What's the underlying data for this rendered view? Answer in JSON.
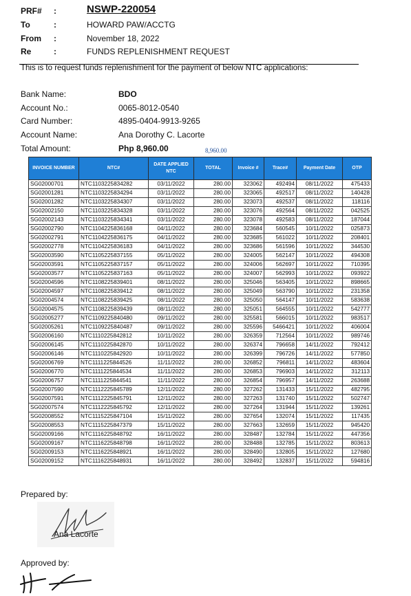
{
  "header": {
    "prf_label": "PRF#",
    "prf_value": "NSWP-220054",
    "to_label": "To",
    "to_value": "HOWARD PAW/ACCTG",
    "from_label": "From",
    "from_value": "November 18, 2022",
    "re_label": "Re",
    "re_value": "FUNDS REPLENISHMENT REQUEST",
    "colon": ":"
  },
  "intro": "This is to request funds replenishment for the payment of below NTC applications:",
  "bank": {
    "bank_name_label": "Bank Name:",
    "bank_name": "BDO",
    "account_no_label": "Account No.:",
    "account_no": "0065-8012-0540",
    "card_number_label": "Card Number:",
    "card_number": "4895-0404-9913-9265",
    "account_name_label": "Account Name:",
    "account_name": "Ana Dorothy C. Lacorte",
    "total_amount_label": "Total Amount:",
    "total_amount": "Php 8,960.00",
    "total_amount_echo": "8,960.00"
  },
  "table": {
    "headers": [
      "INVOICE NUMBER",
      "NTC#",
      "DATE APPLIED NTC",
      "TOTAL",
      "Invoice #",
      "Trace#",
      "Payment Date",
      "OTP"
    ],
    "rows": [
      [
        "SG02000701",
        "NTC1103225834282",
        "03/11/2022",
        "280.00",
        "323062",
        "492494",
        "08/11/2022",
        "475433"
      ],
      [
        "SG02001281",
        "NTC1103225834294",
        "03/11/2022",
        "280.00",
        "323065",
        "492517",
        "08/11/2022",
        "140428"
      ],
      [
        "SG02001282",
        "NTC1103225834307",
        "03/11/2022",
        "280.00",
        "323073",
        "492537",
        "08/11/2022",
        "118116"
      ],
      [
        "SG02002150",
        "NTC1103225834328",
        "03/11/2022",
        "280.00",
        "323076",
        "492564",
        "08/11/2022",
        "042525"
      ],
      [
        "SG02002143",
        "NTC1103225834341",
        "03/11/2022",
        "280.00",
        "323078",
        "492583",
        "08/11/2022",
        "187044"
      ],
      [
        "SG02002790",
        "NTC1104225836168",
        "04/11/2022",
        "280.00",
        "323684",
        "560545",
        "10/11/2022",
        "025873"
      ],
      [
        "SG02002791",
        "NTC1104225836175",
        "04/11/2022",
        "280.00",
        "323685",
        "561022",
        "10/11/2022",
        "208401"
      ],
      [
        "SG02002778",
        "NTC1104225836183",
        "04/11/2022",
        "280.00",
        "323686",
        "561596",
        "10/11/2022",
        "344530"
      ],
      [
        "SG02003590",
        "NTC1105225837155",
        "05/11/2022",
        "280.00",
        "324005",
        "562147",
        "10/11/2022",
        "494308"
      ],
      [
        "SG02003591",
        "NTC1105225837157",
        "05/11/2022",
        "280.00",
        "324006",
        "562697",
        "10/11/2022",
        "710395"
      ],
      [
        "SG02003577",
        "NTC1105225837163",
        "05/11/2022",
        "280.00",
        "324007",
        "562993",
        "10/11/2022",
        "093922"
      ],
      [
        "SG02004596",
        "NTC1108225839401",
        "08/11/2022",
        "280.00",
        "325046",
        "563405",
        "10/11/2022",
        "898665"
      ],
      [
        "SG02004597",
        "NTC1108225839412",
        "08/11/2022",
        "280.00",
        "325049",
        "563790",
        "10/11/2022",
        "231358"
      ],
      [
        "SG02004574",
        "NTC1108225839425",
        "08/11/2022",
        "280.00",
        "325050",
        "564147",
        "10/11/2022",
        "583638"
      ],
      [
        "SG02004575",
        "NTC1108225839439",
        "08/11/2022",
        "280.00",
        "325051",
        "564555",
        "10/11/2022",
        "542777"
      ],
      [
        "SG02005277",
        "NTC1109225840480",
        "09/11/2022",
        "280.00",
        "325581",
        "566015",
        "10/11/2022",
        "983517"
      ],
      [
        "SG02005261",
        "NTC1109225840487",
        "09/11/2022",
        "280.00",
        "325596",
        "5466421",
        "10/11/2022",
        "406004"
      ],
      [
        "SG02006160",
        "NTC1110225842812",
        "10/11/2022",
        "280.00",
        "326359",
        "712564",
        "10/11/2022",
        "989746"
      ],
      [
        "SG02006145",
        "NTC1110225842870",
        "10/11/2022",
        "280.00",
        "326374",
        "796658",
        "14/11/2022",
        "792412"
      ],
      [
        "SG02006146",
        "NTC1110225842920",
        "10/11/2022",
        "280.00",
        "326399",
        "796726",
        "14/11/2022",
        "577850"
      ],
      [
        "SG02006769",
        "NTC1111225844526",
        "11/11/2022",
        "280.00",
        "326852",
        "796811",
        "14/11/2022",
        "483604"
      ],
      [
        "SG02006770",
        "NTC1111225844534",
        "11/11/2022",
        "280.00",
        "326853",
        "796903",
        "14/11/2022",
        "312113"
      ],
      [
        "SG02006757",
        "NTC1111225844541",
        "11/11/2022",
        "280.00",
        "326854",
        "796957",
        "14/11/2022",
        "263688"
      ],
      [
        "SG02007590",
        "NTC1112225845789",
        "12/11/2022",
        "280.00",
        "327262",
        "131433",
        "15/11/2022",
        "482795"
      ],
      [
        "SG02007591",
        "NTC1112225845791",
        "12/11/2022",
        "280.00",
        "327263",
        "131740",
        "15/11/2022",
        "502747"
      ],
      [
        "SG02007574",
        "NTC1112225845792",
        "12/11/2022",
        "280.00",
        "327264",
        "131944",
        "15/11/2022",
        "139261"
      ],
      [
        "SG02008552",
        "NTC1115225847104",
        "15/11/2022",
        "280.00",
        "327654",
        "132074",
        "15/11/2022",
        "117435"
      ],
      [
        "SG02008553",
        "NTC1115225847379",
        "15/11/2022",
        "280.00",
        "327663",
        "132659",
        "15/11/2022",
        "945420"
      ],
      [
        "SG02009166",
        "NTC1116225848792",
        "16/11/2022",
        "280.00",
        "328487",
        "132784",
        "15/11/2022",
        "447356"
      ],
      [
        "SG02009167",
        "NTC1116225848798",
        "16/11/2022",
        "280.00",
        "328488",
        "132785",
        "15/11/2022",
        "803613"
      ],
      [
        "SG02009153",
        "NTC1116225848921",
        "16/11/2022",
        "280.00",
        "328490",
        "132805",
        "15/11/2022",
        "127680"
      ],
      [
        "SG02009152",
        "NTC1116225848931",
        "16/11/2022",
        "280.00",
        "328492",
        "132837",
        "15/11/2022",
        "594816"
      ]
    ]
  },
  "footer": {
    "prepared_by_label": "Prepared by:",
    "preparer_name": "Ana Lacorte",
    "approved_by_label": "Approved by:"
  },
  "colors": {
    "table_header_bg": "#1f7fd6",
    "total_echo": "#1f4e9a"
  }
}
